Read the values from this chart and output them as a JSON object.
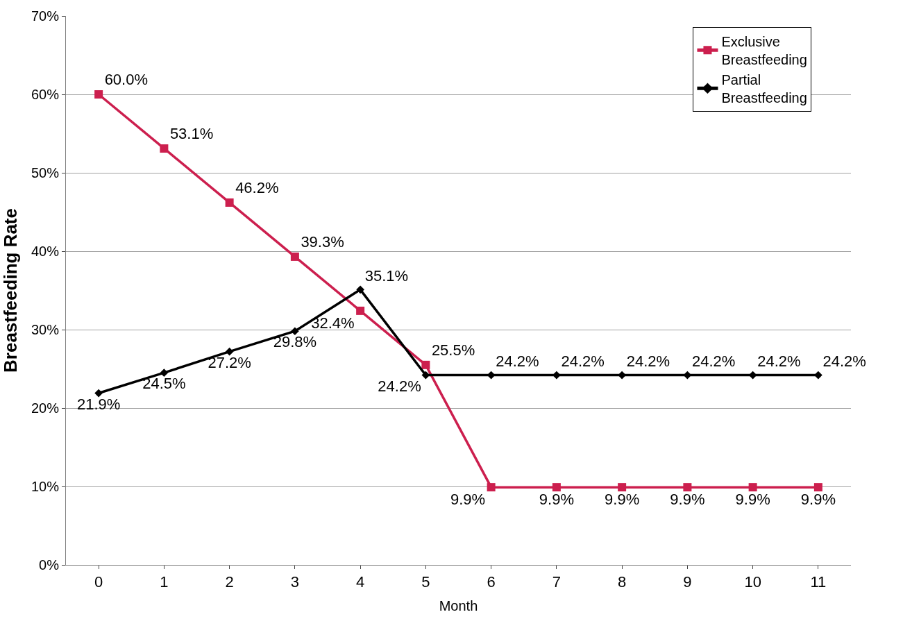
{
  "chart_data": {
    "type": "line",
    "xlabel": "Month",
    "ylabel": "Breastfeeding Rate",
    "categories": [
      "0",
      "1",
      "2",
      "3",
      "4",
      "5",
      "6",
      "7",
      "8",
      "9",
      "10",
      "11"
    ],
    "series": [
      {
        "name": "Exclusive Breastfeeding",
        "color": "#cc1f4e",
        "marker": "square",
        "values": [
          60.0,
          53.1,
          46.2,
          39.3,
          32.4,
          25.5,
          9.9,
          9.9,
          9.9,
          9.9,
          9.9,
          9.9
        ],
        "value_labels": [
          "60.0%",
          "53.1%",
          "46.2%",
          "39.3%",
          "32.4%",
          "25.5%",
          "9.9%",
          "9.9%",
          "9.9%",
          "9.9%",
          "9.9%",
          "9.9%"
        ]
      },
      {
        "name": "Partial Breastfeeding",
        "color": "#000000",
        "marker": "diamond",
        "values": [
          21.9,
          24.5,
          27.2,
          29.8,
          35.1,
          24.2,
          24.2,
          24.2,
          24.2,
          24.2,
          24.2,
          24.2
        ],
        "value_labels": [
          "21.9%",
          "24.5%",
          "27.2%",
          "29.8%",
          "35.1%",
          "24.2%",
          "24.2%",
          "24.2%",
          "24.2%",
          "24.2%",
          "24.2%",
          "24.2%"
        ]
      }
    ],
    "ylim": [
      0,
      70
    ],
    "yticks": [
      {
        "value": 0,
        "label": "0%"
      },
      {
        "value": 10,
        "label": "10%"
      },
      {
        "value": 20,
        "label": "20%"
      },
      {
        "value": 30,
        "label": "30%"
      },
      {
        "value": 40,
        "label": "40%"
      },
      {
        "value": 50,
        "label": "50%"
      },
      {
        "value": 60,
        "label": "60%"
      },
      {
        "value": 70,
        "label": "70%"
      }
    ],
    "grid": "y",
    "legend": "top right"
  }
}
